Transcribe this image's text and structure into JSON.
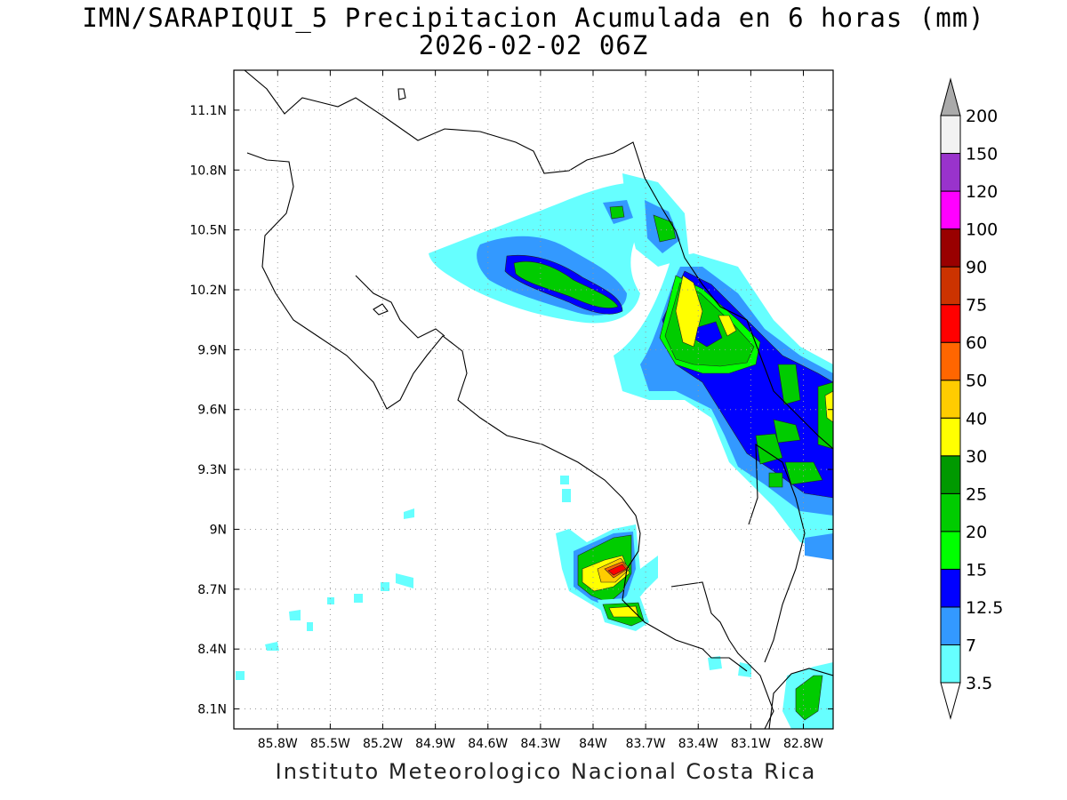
{
  "title": {
    "line1": "IMN/SARAPIQUI_5 Precipitacion Acumulada en 6 horas (mm)",
    "line2": "2026-02-02 06Z"
  },
  "credit": "Instituto Meteorologico Nacional Costa Rica",
  "map": {
    "lon_range": [
      -86.05,
      -82.63
    ],
    "lat_range": [
      8.0,
      11.3
    ],
    "lon_ticks": [
      {
        "value": -85.8,
        "label": "85.8W"
      },
      {
        "value": -85.5,
        "label": "85.5W"
      },
      {
        "value": -85.2,
        "label": "85.2W"
      },
      {
        "value": -84.9,
        "label": "84.9W"
      },
      {
        "value": -84.6,
        "label": "84.6W"
      },
      {
        "value": -84.3,
        "label": "84.3W"
      },
      {
        "value": -84.0,
        "label": "84W"
      },
      {
        "value": -83.7,
        "label": "83.7W"
      },
      {
        "value": -83.4,
        "label": "83.4W"
      },
      {
        "value": -83.1,
        "label": "83.1W"
      },
      {
        "value": -82.8,
        "label": "82.8W"
      }
    ],
    "lat_ticks": [
      {
        "value": 11.1,
        "label": "11.1N"
      },
      {
        "value": 10.8,
        "label": "10.8N"
      },
      {
        "value": 10.5,
        "label": "10.5N"
      },
      {
        "value": 10.2,
        "label": "10.2N"
      },
      {
        "value": 9.9,
        "label": "9.9N"
      },
      {
        "value": 9.6,
        "label": "9.6N"
      },
      {
        "value": 9.3,
        "label": "9.3N"
      },
      {
        "value": 9.0,
        "label": "9N"
      },
      {
        "value": 8.7,
        "label": "8.7N"
      },
      {
        "value": 8.4,
        "label": "8.4N"
      },
      {
        "value": 8.1,
        "label": "8.1N"
      }
    ],
    "grid": "dotted"
  },
  "colorbar": {
    "units": "mm",
    "levels": [
      "3.5",
      "7",
      "12.5",
      "15",
      "20",
      "25",
      "30",
      "40",
      "50",
      "60",
      "75",
      "90",
      "100",
      "120",
      "150",
      "200"
    ],
    "colors": [
      "#66ffff",
      "#3399ff",
      "#0000ff",
      "#00ff00",
      "#00cc00",
      "#009900",
      "#ffff00",
      "#ffcc00",
      "#ff6600",
      "#ff0000",
      "#cc3300",
      "#990000",
      "#ff00ff",
      "#9933cc",
      "#f2f2f2",
      "#aaaaaa"
    ]
  },
  "precip_cells": [
    {
      "name": "northern-band",
      "lon": -84.1,
      "lat": 10.25,
      "peak_mm": 22
    },
    {
      "name": "caribbean-north",
      "lon": -83.45,
      "lat": 10.55,
      "peak_mm": 22
    },
    {
      "name": "central-caribbean",
      "lon": -83.35,
      "lat": 10.05,
      "peak_mm": 40
    },
    {
      "name": "limon-coast",
      "lon": -82.85,
      "lat": 9.55,
      "peak_mm": 40
    },
    {
      "name": "osa-south",
      "lon": -83.8,
      "lat": 8.75,
      "peak_mm": 62
    },
    {
      "name": "golfito",
      "lon": -83.7,
      "lat": 8.55,
      "peak_mm": 35
    },
    {
      "name": "panama-corner",
      "lon": -82.7,
      "lat": 8.15,
      "peak_mm": 22
    }
  ]
}
